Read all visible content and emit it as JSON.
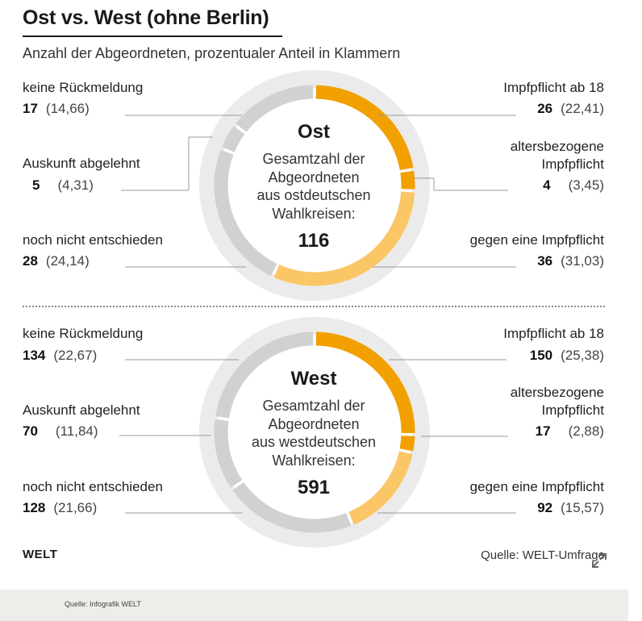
{
  "title": "Ost vs. West (ohne Berlin)",
  "subtitle": "Anzahl der Abgeordneten, prozentualer Anteil in Klammern",
  "chart_data": [
    {
      "type": "pie",
      "center_title": "Ost",
      "center_text": [
        "Gesamtzahl der",
        "Abgeordneten",
        "aus ostdeutschen",
        "Wahlkreisen:"
      ],
      "total": "116",
      "slices": [
        {
          "label": "Impfpflicht ab 18",
          "value": 26,
          "value_text": "26",
          "pct_text": "(22,41)",
          "color": "#f2a000"
        },
        {
          "label": "altersbezogene Impfpflicht",
          "label_lines": [
            "altersbezogene",
            "Impfpflicht"
          ],
          "value": 4,
          "value_text": "4",
          "pct_text": "(3,45)",
          "color": "#f2a000"
        },
        {
          "label": "gegen eine Impfpflicht",
          "value": 36,
          "value_text": "36",
          "pct_text": "(31,03)",
          "color": "#fbc666"
        },
        {
          "label": "noch nicht entschieden",
          "value": 28,
          "value_text": "28",
          "pct_text": "(24,14)",
          "color": "#d1d1d1"
        },
        {
          "label": "Auskunft abgelehnt",
          "value": 5,
          "value_text": "5",
          "pct_text": "(4,31)",
          "color": "#d1d1d1"
        },
        {
          "label": "keine Rückmeldung",
          "value": 17,
          "value_text": "17",
          "pct_text": "(14,66)",
          "color": "#d1d1d1"
        }
      ]
    },
    {
      "type": "pie",
      "center_title": "West",
      "center_text": [
        "Gesamtzahl der",
        "Abgeordneten",
        "aus westdeutschen",
        "Wahlkreisen:"
      ],
      "total": "591",
      "slices": [
        {
          "label": "Impfpflicht ab 18",
          "value": 150,
          "value_text": "150",
          "pct_text": "(25,38)",
          "color": "#f2a000"
        },
        {
          "label": "altersbezogene Impfpflicht",
          "label_lines": [
            "altersbezogene",
            "Impfpflicht"
          ],
          "value": 17,
          "value_text": "17",
          "pct_text": "(2,88)",
          "color": "#f2a000"
        },
        {
          "label": "gegen eine Impfpflicht",
          "value": 92,
          "value_text": "92",
          "pct_text": "(15,57)",
          "color": "#fbc666"
        },
        {
          "label": "noch nicht entschieden",
          "value": 128,
          "value_text": "128",
          "pct_text": "(21,66)",
          "color": "#d1d1d1"
        },
        {
          "label": "Auskunft abgelehnt",
          "value": 70,
          "value_text": "70",
          "pct_text": "(11,84)",
          "color": "#d1d1d1"
        },
        {
          "label": "keine Rückmeldung",
          "value": 134,
          "value_text": "134",
          "pct_text": "(22,67)",
          "color": "#d1d1d1"
        }
      ]
    }
  ],
  "logo": "WELT",
  "source": "Quelle: WELT-Umfrage",
  "footer": "Quelle: Infografik WELT",
  "icons": {
    "expand": "expand-icon"
  },
  "colors": {
    "background_ring": "#ebebeb",
    "rule": "#1a1a1a",
    "leader": "#9a9a9a"
  }
}
